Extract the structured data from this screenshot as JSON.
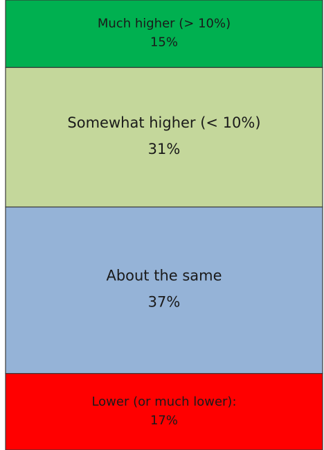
{
  "chart_data": {
    "type": "bar",
    "stacked": true,
    "categories": [
      "Much higher (> 10%)",
      "Somewhat higher (< 10%)",
      "About the same",
      "Lower (or much lower):"
    ],
    "values": [
      15,
      31,
      37,
      17
    ],
    "value_labels": [
      "15%",
      "31%",
      "37%",
      "17%"
    ],
    "colors": [
      "#00b050",
      "#c4d79b",
      "#95b3d7",
      "#ff0000"
    ]
  }
}
